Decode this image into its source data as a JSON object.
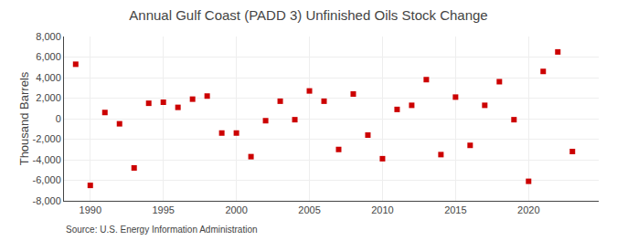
{
  "chart_data": {
    "type": "scatter",
    "title": "Annual Gulf Coast (PADD 3) Unfinished Oils Stock Change",
    "ylabel": "Thousand Barrels",
    "annotations": [
      "Source: U.S. Energy Information Administration"
    ],
    "x": [
      1989,
      1990,
      1991,
      1992,
      1993,
      1994,
      1995,
      1996,
      1997,
      1998,
      1999,
      2000,
      2001,
      2002,
      2003,
      2004,
      2005,
      2006,
      2007,
      2008,
      2009,
      2010,
      2011,
      2012,
      2013,
      2014,
      2015,
      2016,
      2017,
      2018,
      2019,
      2020,
      2021,
      2022,
      2023
    ],
    "values": [
      5300,
      -6500,
      600,
      -500,
      -4800,
      1500,
      1600,
      1100,
      1900,
      2200,
      -1400,
      -1400,
      -3700,
      -200,
      1700,
      -100,
      2700,
      1700,
      -3000,
      2400,
      -1600,
      -3900,
      900,
      1300,
      3800,
      -3500,
      2100,
      -2600,
      1300,
      3600,
      -100,
      -6100,
      4600,
      6500,
      -3200
    ],
    "color": "#cc0000",
    "marker": "square",
    "xlim": [
      1988.2,
      2024.8
    ],
    "xticks": [
      1990,
      1995,
      2000,
      2005,
      2010,
      2015,
      2020
    ],
    "ylim": [
      -8000,
      8000
    ],
    "yticks": [
      {
        "value": -8000,
        "label": "-8,000"
      },
      {
        "value": -6000,
        "label": "-6,000"
      },
      {
        "value": -4000,
        "label": "-4,000"
      },
      {
        "value": -2000,
        "label": "-2,000"
      },
      0,
      {
        "value": 2000,
        "label": "2,000"
      },
      {
        "value": 4000,
        "label": "4,000"
      },
      {
        "value": 6000,
        "label": "6,000"
      },
      {
        "value": 8000,
        "label": "8,000"
      }
    ],
    "grid": true
  }
}
